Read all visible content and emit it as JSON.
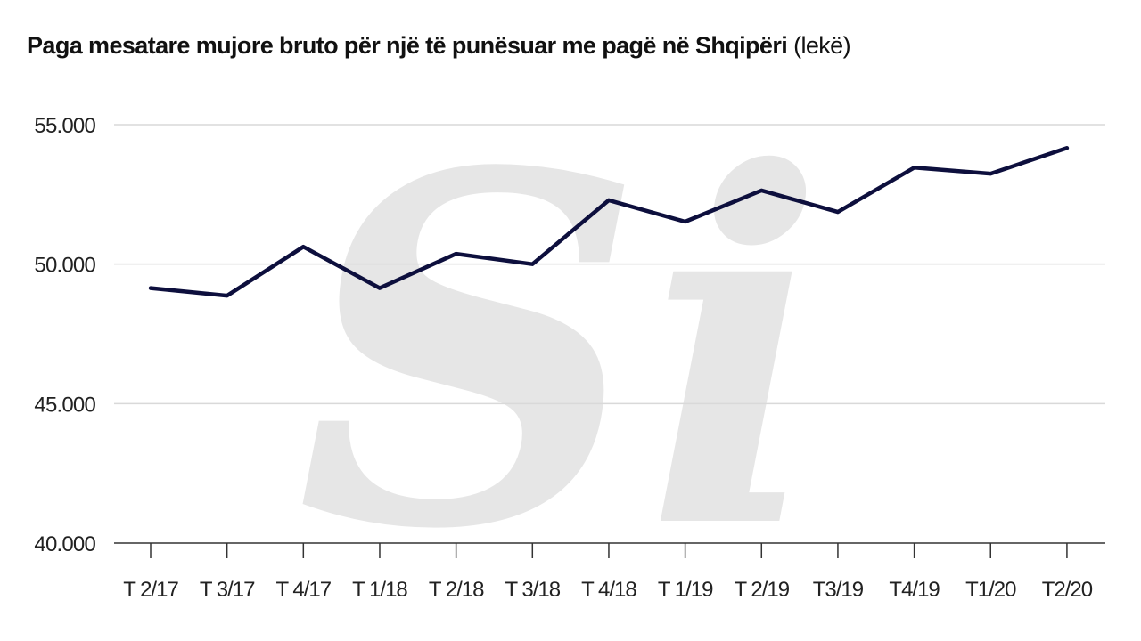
{
  "title": "Paga mesatare mujore bruto për një të punësuar me pagë në Shqipëri",
  "unit": "(lekë)",
  "watermark": "Si",
  "colors": {
    "line": "#0d0f3d",
    "grid": "#d9d9d9",
    "axis": "#333333",
    "watermark": "#e6e6e6"
  },
  "chart_data": {
    "type": "line",
    "title": "Paga mesatare mujore bruto për një të punësuar me pagë në Shqipëri",
    "xlabel": "",
    "ylabel": "",
    "ylim": [
      40000,
      55000
    ],
    "yticks": [
      40000,
      45000,
      50000,
      55000
    ],
    "ytick_labels": [
      "40.000",
      "45.000",
      "50.000",
      "55.000"
    ],
    "grid": true,
    "legend": "none",
    "categories": [
      "T 2/17",
      "T 3/17",
      "T 4/17",
      "T 1/18",
      "T 2/18",
      "T 3/18",
      "T 4/18",
      "T 1/19",
      "T 2/19",
      "T3/19",
      "T4/19",
      "T1/20",
      "T2/20"
    ],
    "series": [
      {
        "values": [
          49140,
          48870,
          50620,
          49140,
          50370,
          50000,
          52290,
          51520,
          52640,
          51870,
          53460,
          53240,
          54160
        ]
      }
    ]
  }
}
